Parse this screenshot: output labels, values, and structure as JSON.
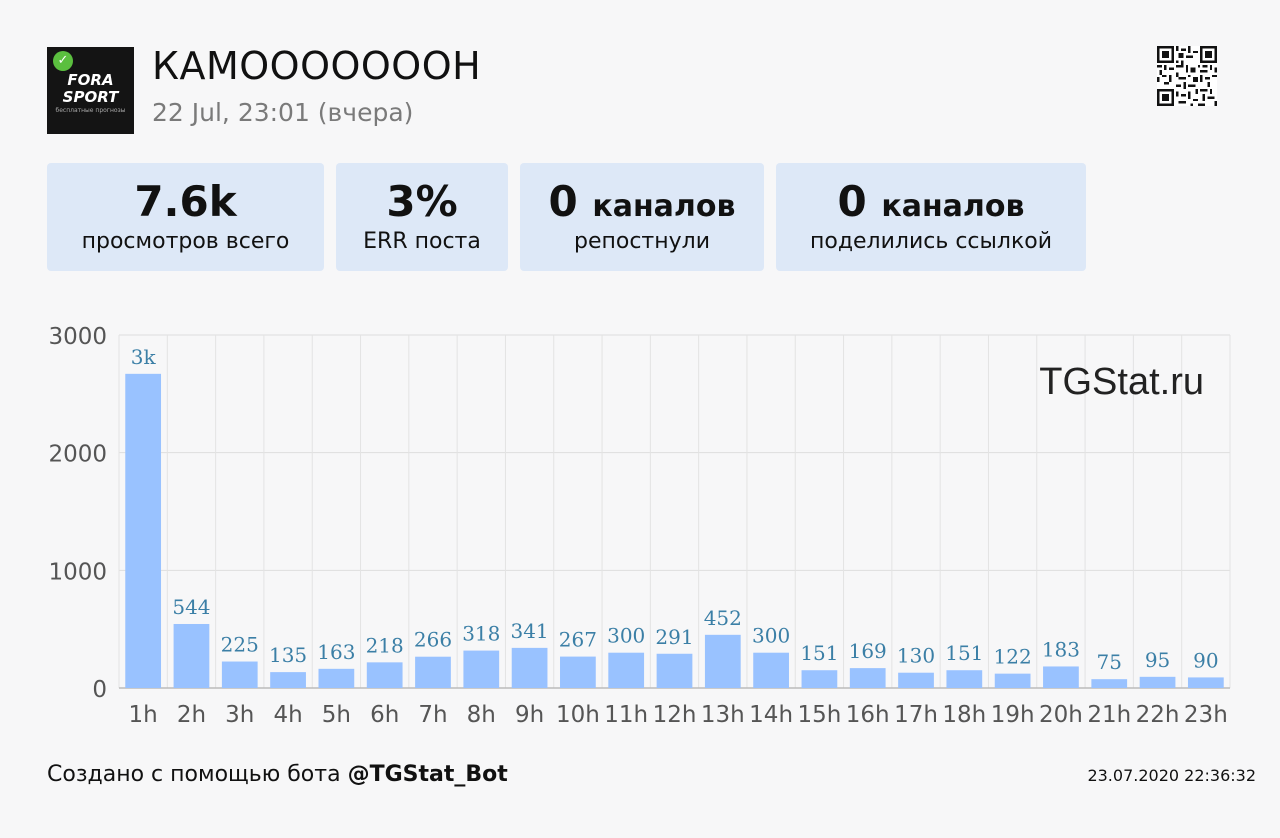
{
  "header": {
    "logo_line1": "FORA",
    "logo_line2": "SPORT",
    "logo_line3": "бесплатные прогнозы",
    "channel_title": "КАМОООООООН",
    "post_time": "22 Jul, 23:01 (вчера)"
  },
  "stats": [
    {
      "value": "7.6k",
      "unit": "",
      "label": "просмотров всего"
    },
    {
      "value": "3%",
      "unit": "",
      "label": "ERR поста"
    },
    {
      "value": "0",
      "unit": "каналов",
      "label": "репостнули"
    },
    {
      "value": "0",
      "unit": "каналов",
      "label": "поделились ссылкой"
    }
  ],
  "watermark": "TGStat.ru",
  "footer": {
    "prefix": "Создано с помощью бота ",
    "bot": "@TGStat_Bot",
    "timestamp": "23.07.2020 22:36:32"
  },
  "colors": {
    "bar": "#99c2ff",
    "data_label": "#3b7fa6",
    "card_bg": "#dde8f7"
  },
  "chart_data": {
    "type": "bar",
    "categories": [
      "1h",
      "2h",
      "3h",
      "4h",
      "5h",
      "6h",
      "7h",
      "8h",
      "9h",
      "10h",
      "11h",
      "12h",
      "13h",
      "14h",
      "15h",
      "16h",
      "17h",
      "18h",
      "19h",
      "20h",
      "21h",
      "22h",
      "23h"
    ],
    "values": [
      2670,
      544,
      225,
      135,
      163,
      218,
      266,
      318,
      341,
      267,
      300,
      291,
      452,
      300,
      151,
      169,
      130,
      151,
      122,
      183,
      75,
      95,
      90
    ],
    "data_labels": [
      "3k",
      "544",
      "225",
      "135",
      "163",
      "218",
      "266",
      "318",
      "341",
      "267",
      "300",
      "291",
      "452",
      "300",
      "151",
      "169",
      "130",
      "151",
      "122",
      "183",
      "75",
      "95",
      "90"
    ],
    "yticks": [
      0,
      1000,
      2000,
      3000
    ],
    "ylim": [
      0,
      3000
    ],
    "grid": true,
    "title": "",
    "xlabel": "",
    "ylabel": ""
  }
}
